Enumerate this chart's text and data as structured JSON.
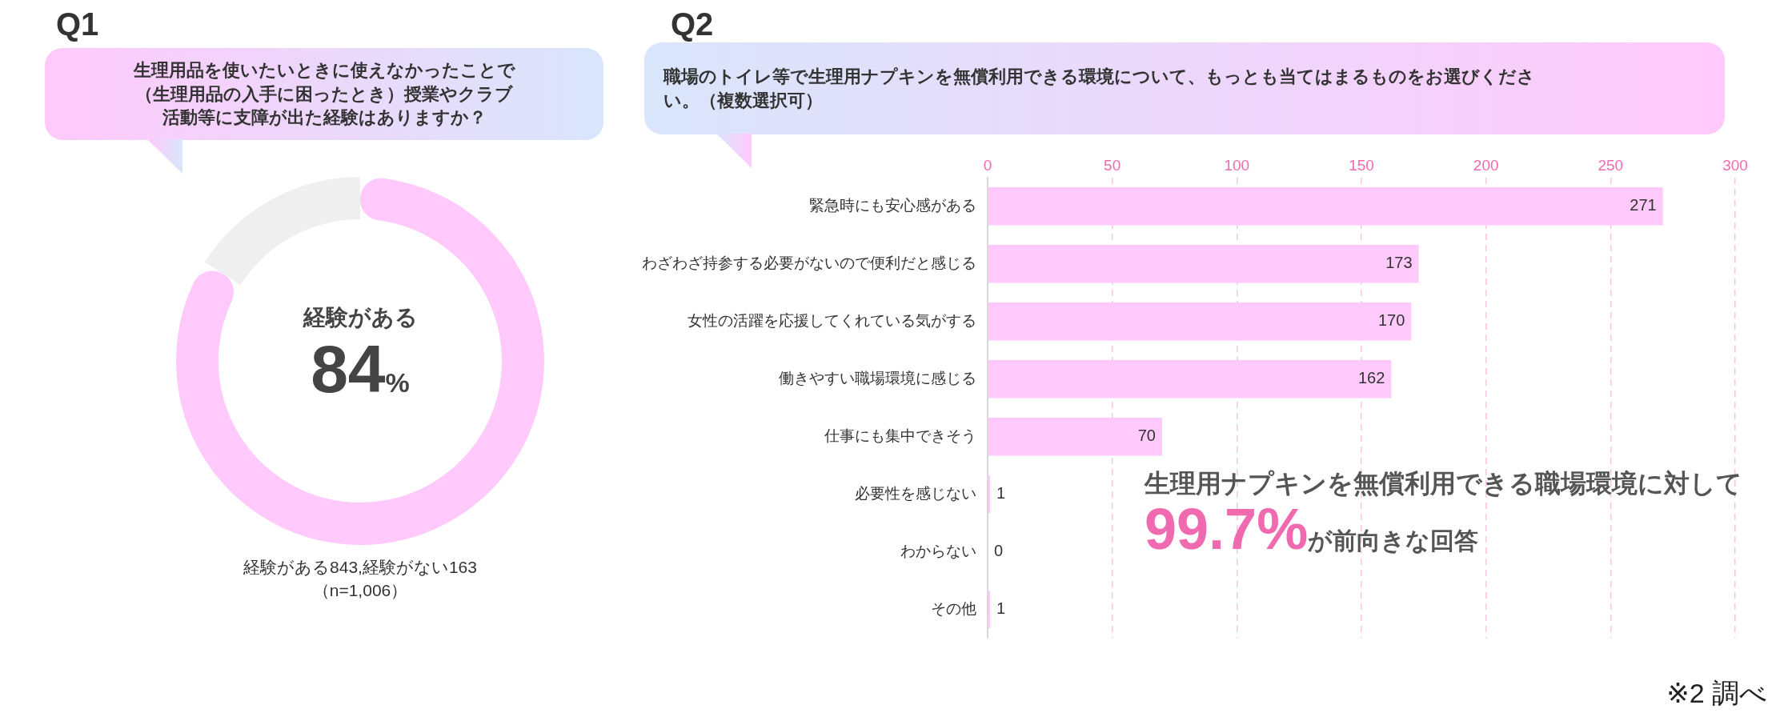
{
  "chart_data": [
    {
      "type": "donut",
      "title": "Q1",
      "subtitle": "生理用品を使いたいときに使えなかったことで（生理用品の入手に困ったとき）授業やクラブ活動等に支障が出た経験はありますか？",
      "categories": [
        null,
        null
      ],
      "values": [
        84,
        16
      ],
      "colors": [
        "#ffc9fb",
        "#efefef"
      ],
      "legend": false,
      "annotations": [
        "経験がある",
        "84%",
        "経験がある843,経験がない163",
        "（n=1,006）"
      ]
    },
    {
      "type": "bar",
      "orientation": "horizontal",
      "title": "Q2",
      "subtitle": "職場のトイレ等で生理用ナプキンを無償利用できる環境について、もっとも当てはまるものをお選びください。（複数選択可）",
      "categories": [
        "緊急時にも安心感がある",
        "わざわざ持参する必要がないので便利だと感じる",
        "女性の活躍を応援してくれている気がする",
        "働きやすい職場環境に感じる",
        "仕事にも集中できそう",
        "必要性を感じない",
        "わからない",
        "その他"
      ],
      "values": [
        271,
        173,
        170,
        162,
        70,
        1,
        0,
        1
      ],
      "color": "#ffc9fb",
      "xlim": [
        0,
        300
      ],
      "xticks": [
        0,
        50,
        100,
        150,
        200,
        250,
        300
      ],
      "grid": "x",
      "legend": false,
      "data_labels": true,
      "annotations": [
        "生理用ナプキンを無償利用できる職場環境に対して",
        "99.7%",
        "が前向きな回答",
        "※2 調べ"
      ]
    }
  ]
}
